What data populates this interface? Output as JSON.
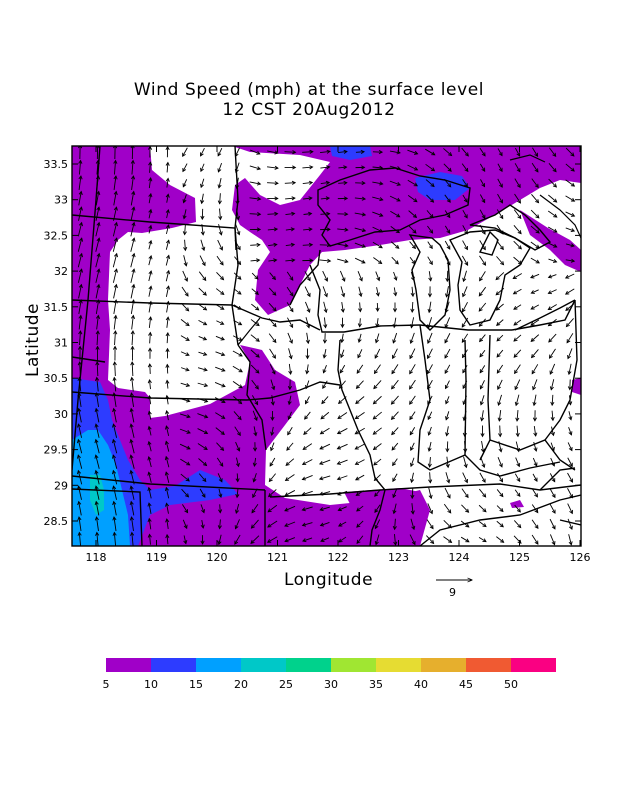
{
  "title_line1": "Wind Speed (mph) at the surface level",
  "title_line2": "12 CST 20Aug2012",
  "xlabel": "Longitude",
  "ylabel": "Latitude",
  "x_ticks": [
    "118",
    "119",
    "120",
    "121",
    "122",
    "123",
    "124",
    "125",
    "126"
  ],
  "y_ticks": [
    "28.5",
    "29",
    "29.5",
    "30",
    "30.5",
    "31",
    "31.5",
    "32",
    "32.5",
    "33",
    "33.5"
  ],
  "reference_vector_label": "9",
  "legend": {
    "labels": [
      "5",
      "10",
      "15",
      "20",
      "25",
      "30",
      "35",
      "40",
      "45",
      "50"
    ],
    "colors": [
      "#a000c8",
      "#2d3cff",
      "#00a0ff",
      "#00c8c8",
      "#00d28c",
      "#a0e632",
      "#e6dc32",
      "#e6af2d",
      "#f05a32",
      "#fa0082"
    ]
  },
  "colors": {
    "speed_5_10": "#a000c8",
    "speed_10_15": "#2d3cff",
    "speed_15_20": "#00a0ff",
    "speed_20_25": "#00c8c8",
    "below_5": "#ffffff",
    "boundaries": "#000000"
  }
}
